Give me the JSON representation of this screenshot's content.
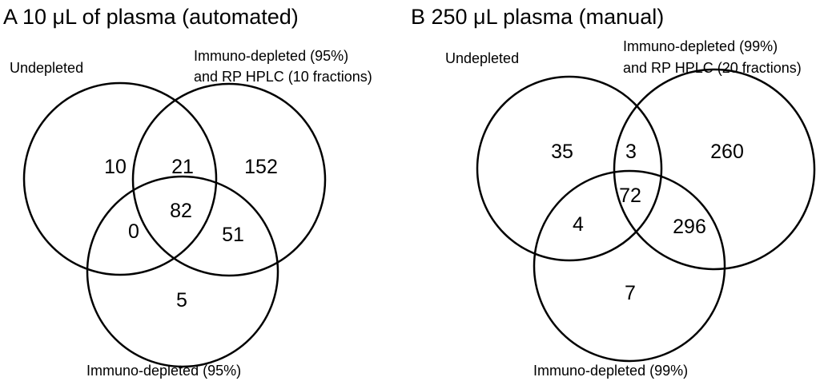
{
  "panels": [
    {
      "title": "A 10 μL of plasma (automated)",
      "labels": {
        "set1": "Undepleted",
        "set2_line1": "Immuno-depleted (95%)",
        "set2_line2": "and RP HPLC (10 fractions)",
        "set3": "Immuno-depleted (95%)"
      },
      "regions": {
        "only_1": "10",
        "r12": "21",
        "only_2": "152",
        "r13": "0",
        "r123": "82",
        "r23": "51",
        "only_3": "5"
      }
    },
    {
      "title": "B 250 μL plasma (manual)",
      "labels": {
        "set1": "Undepleted",
        "set2_line1": "Immuno-depleted (99%)",
        "set2_line2": "and RP HPLC (20 fractions)",
        "set3": "Immuno-depleted (99%)"
      },
      "regions": {
        "only_1": "35",
        "r12": "3",
        "only_2": "260",
        "r13": "4",
        "r123": "72",
        "r23": "296",
        "only_3": "7"
      }
    }
  ]
}
